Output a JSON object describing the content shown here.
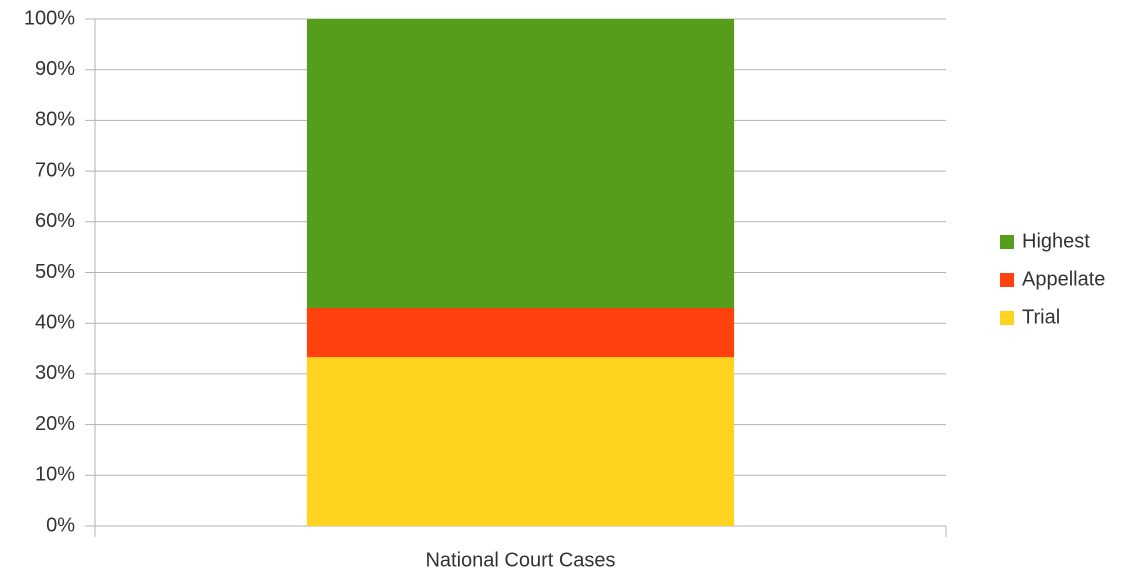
{
  "chart_data": {
    "type": "stacked_bar_100",
    "categories": [
      "National Court Cases"
    ],
    "series": [
      {
        "name": "Trial",
        "color": "#ffd320",
        "values": [
          33.3
        ]
      },
      {
        "name": "Appellate",
        "color": "#ff420e",
        "values": [
          9.7
        ]
      },
      {
        "name": "Highest",
        "color": "#579d1c",
        "values": [
          57.0
        ]
      }
    ],
    "ylim": [
      0,
      100
    ],
    "yticks": [
      {
        "value": 0,
        "label": "0%"
      },
      {
        "value": 10,
        "label": "10%"
      },
      {
        "value": 20,
        "label": "20%"
      },
      {
        "value": 30,
        "label": "30%"
      },
      {
        "value": 40,
        "label": "40%"
      },
      {
        "value": 50,
        "label": "50%"
      },
      {
        "value": 60,
        "label": "60%"
      },
      {
        "value": 70,
        "label": "70%"
      },
      {
        "value": 80,
        "label": "80%"
      },
      {
        "value": 90,
        "label": "90%"
      },
      {
        "value": 100,
        "label": "100%"
      }
    ],
    "grid": true,
    "legend": "right"
  }
}
